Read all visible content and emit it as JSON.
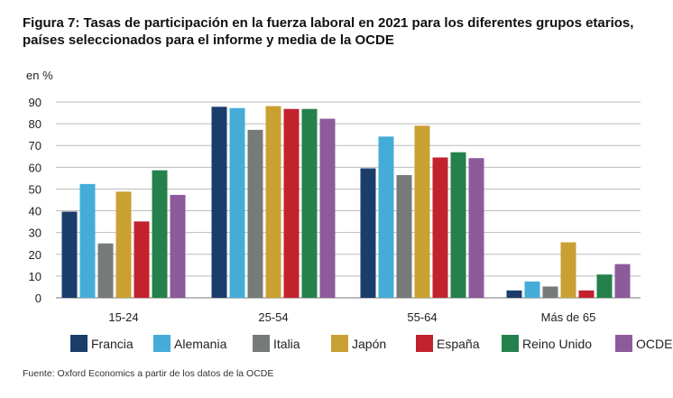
{
  "chart_data": {
    "type": "bar",
    "title": "Figura 7: Tasas de participación en la fuerza laboral en 2021 para los diferentes grupos etarios, países seleccionados para el informe y media de la OCDE",
    "ylabel": "en %",
    "xlabel": "",
    "ylim": [
      0,
      90
    ],
    "yticks": [
      0,
      10,
      20,
      30,
      40,
      50,
      60,
      70,
      80,
      90
    ],
    "grid": true,
    "legend": "bottom",
    "categories": [
      "15-24",
      "25-54",
      "55-64",
      "Más de 65"
    ],
    "series": [
      {
        "name": "Francia",
        "color": "#1b3d6b",
        "values": [
          39.6,
          87.8,
          59.5,
          3.4
        ]
      },
      {
        "name": "Alemania",
        "color": "#45acd8",
        "values": [
          52.3,
          87.2,
          74.1,
          7.5
        ]
      },
      {
        "name": "Italia",
        "color": "#767a78",
        "values": [
          25.0,
          77.2,
          56.4,
          5.2
        ]
      },
      {
        "name": "Japón",
        "color": "#c9a032",
        "values": [
          48.8,
          88.1,
          79.1,
          25.5
        ]
      },
      {
        "name": "España",
        "color": "#c1222e",
        "values": [
          35.1,
          86.8,
          64.5,
          3.4
        ]
      },
      {
        "name": "Reino Unido",
        "color": "#25814c",
        "values": [
          58.6,
          86.8,
          66.9,
          10.7
        ]
      },
      {
        "name": "OCDE",
        "color": "#8d5a9b",
        "values": [
          47.3,
          82.3,
          64.2,
          15.5
        ]
      }
    ],
    "source": "Fuente: Oxford Economics a partir de los datos de la OCDE"
  }
}
